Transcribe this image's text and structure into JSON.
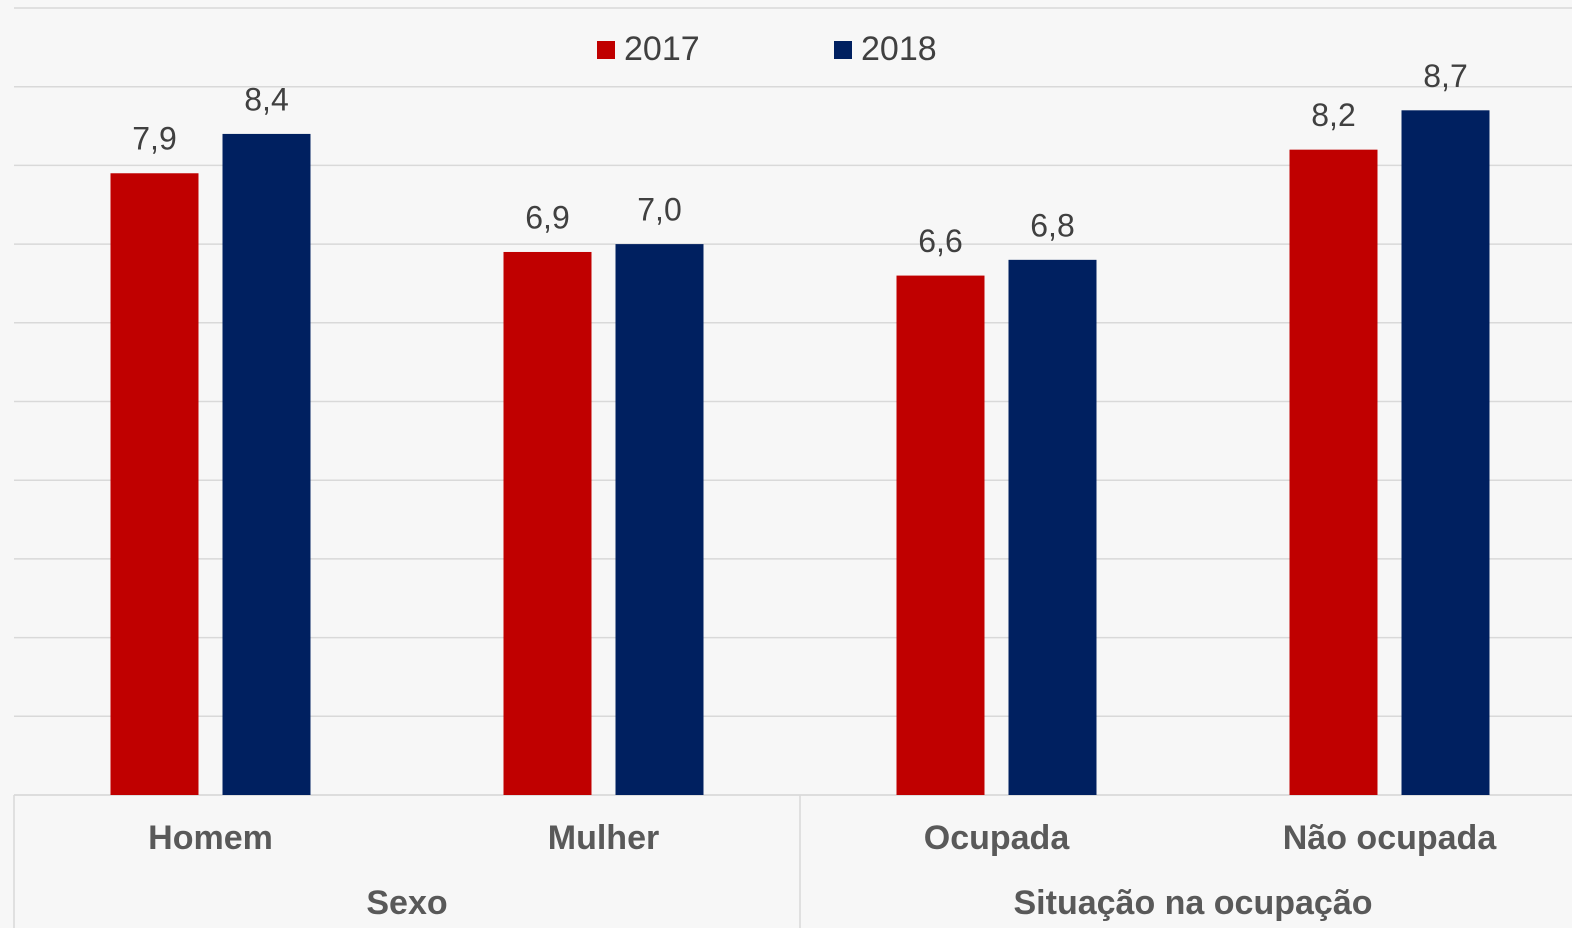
{
  "chart_data": {
    "type": "bar",
    "groups": [
      {
        "name": "Sexo",
        "categories": [
          "Homem",
          "Mulher"
        ]
      },
      {
        "name": "Situação na ocupação",
        "categories": [
          "Ocupada",
          "Não ocupada"
        ]
      }
    ],
    "series": [
      {
        "name": "2017",
        "color": "#c00000",
        "values": [
          7.9,
          6.9,
          6.6,
          8.2
        ],
        "value_labels": [
          "7,9",
          "6,9",
          "6,6",
          "8,2"
        ]
      },
      {
        "name": "2018",
        "color": "#002060",
        "values": [
          8.4,
          7.0,
          6.8,
          8.7
        ],
        "value_labels": [
          "8,4",
          "7,0",
          "6,8",
          "8,7"
        ]
      }
    ],
    "ylim": [
      0,
      10
    ],
    "yticks": [
      0,
      1,
      2,
      3,
      4,
      5,
      6,
      7,
      8,
      9,
      10
    ],
    "grid": true,
    "legend": "top"
  }
}
